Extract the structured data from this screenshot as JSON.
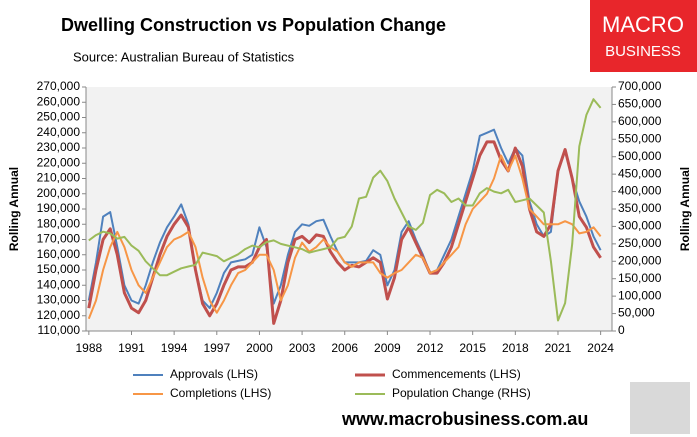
{
  "chart_data": {
    "type": "line",
    "title": "Dwelling Construction vs Population Change",
    "subtitle": "Source: Australian Bureau of Statistics",
    "y_label": "Rolling Annual",
    "y2_label": "Rolling Annual",
    "logo": [
      "MACRO",
      "BUSINESS"
    ],
    "footer": "www.macrobusiness.com.au",
    "x": [
      1988,
      1988.5,
      1989,
      1989.5,
      1990,
      1990.5,
      1991,
      1991.5,
      1992,
      1992.5,
      1993,
      1993.5,
      1994,
      1994.5,
      1995,
      1995.5,
      1996,
      1996.5,
      1997,
      1997.5,
      1998,
      1998.5,
      1999,
      1999.5,
      2000,
      2000.5,
      2001,
      2001.5,
      2002,
      2002.5,
      2003,
      2003.5,
      2004,
      2004.5,
      2005,
      2005.5,
      2006,
      2006.5,
      2007,
      2007.5,
      2008,
      2008.5,
      2009,
      2009.5,
      2010,
      2010.5,
      2011,
      2011.5,
      2012,
      2012.5,
      2013,
      2013.5,
      2014,
      2014.5,
      2015,
      2015.5,
      2016,
      2016.5,
      2017,
      2017.5,
      2018,
      2018.5,
      2019,
      2019.5,
      2020,
      2020.5,
      2021,
      2021.5,
      2022,
      2022.5,
      2023,
      2023.5,
      2024
    ],
    "xlim": [
      1987.8,
      2024.8
    ],
    "xticks": [
      1988,
      1991,
      1994,
      1997,
      2000,
      2003,
      2006,
      2009,
      2012,
      2015,
      2018,
      2021,
      2024
    ],
    "ylim": [
      110000,
      270000
    ],
    "yticks": [
      {
        "value": 110000,
        "label": "110,000"
      },
      {
        "value": 120000,
        "label": "120,000"
      },
      {
        "value": 130000,
        "label": "130,000"
      },
      {
        "value": 140000,
        "label": "140,000"
      },
      {
        "value": 150000,
        "label": "150,000"
      },
      {
        "value": 160000,
        "label": "160,000"
      },
      {
        "value": 170000,
        "label": "170,000"
      },
      {
        "value": 180000,
        "label": "180,000"
      },
      {
        "value": 190000,
        "label": "190,000"
      },
      {
        "value": 200000,
        "label": "200,000"
      },
      {
        "value": 210000,
        "label": "210,000"
      },
      {
        "value": 220000,
        "label": "220,000"
      },
      {
        "value": 230000,
        "label": "230,000"
      },
      {
        "value": 240000,
        "label": "240,000"
      },
      {
        "value": 250000,
        "label": "250,000"
      },
      {
        "value": 260000,
        "label": "260,000"
      },
      {
        "value": 270000,
        "label": "270,000"
      }
    ],
    "y2lim": [
      0,
      700000
    ],
    "y2ticks": [
      0,
      {
        "value": 50000,
        "label": "50,000"
      },
      {
        "value": 100000,
        "label": "100,000"
      },
      {
        "value": 150000,
        "label": "150,000"
      },
      {
        "value": 200000,
        "label": "200,000"
      },
      {
        "value": 250000,
        "label": "250,000"
      },
      {
        "value": 300000,
        "label": "300,000"
      },
      {
        "value": 350000,
        "label": "350,000"
      },
      {
        "value": 400000,
        "label": "400,000"
      },
      {
        "value": 450000,
        "label": "450,000"
      },
      {
        "value": 500000,
        "label": "500,000"
      },
      {
        "value": 550000,
        "label": "550,000"
      },
      {
        "value": 600000,
        "label": "600,000"
      },
      {
        "value": 650000,
        "label": "650,000"
      },
      {
        "value": 700000,
        "label": "700,000"
      }
    ],
    "grid": false,
    "series": [
      {
        "name": "Approvals (LHS)",
        "color": "#4f81bd",
        "width": 2,
        "values": [
          130000,
          155000,
          185000,
          188000,
          165000,
          140000,
          130000,
          128000,
          140000,
          155000,
          168000,
          178000,
          185000,
          193000,
          180000,
          150000,
          130000,
          125000,
          135000,
          148000,
          155000,
          156000,
          157000,
          160000,
          178000,
          165000,
          128000,
          140000,
          160000,
          175000,
          180000,
          179000,
          182000,
          183000,
          172000,
          162000,
          155000,
          155000,
          155000,
          156000,
          163000,
          160000,
          140000,
          150000,
          175000,
          182000,
          170000,
          160000,
          148000,
          150000,
          160000,
          170000,
          185000,
          200000,
          215000,
          238000,
          240000,
          242000,
          230000,
          220000,
          230000,
          225000,
          195000,
          180000,
          172000,
          175000,
          215000,
          228000,
          210000,
          195000,
          185000,
          172000,
          163000
        ]
      },
      {
        "name": "Commencements (LHS)",
        "color": "#c0504d",
        "width": 3,
        "values": [
          125000,
          150000,
          170000,
          177000,
          160000,
          135000,
          125000,
          122000,
          130000,
          145000,
          160000,
          172000,
          180000,
          186000,
          178000,
          150000,
          128000,
          120000,
          128000,
          140000,
          150000,
          152000,
          152000,
          155000,
          165000,
          170000,
          115000,
          130000,
          155000,
          170000,
          172000,
          168000,
          173000,
          172000,
          162000,
          155000,
          150000,
          153000,
          152000,
          155000,
          158000,
          155000,
          131000,
          145000,
          170000,
          178000,
          168000,
          158000,
          148000,
          148000,
          155000,
          165000,
          180000,
          195000,
          210000,
          225000,
          234000,
          234000,
          222000,
          215000,
          230000,
          218000,
          190000,
          175000,
          172000,
          180000,
          215000,
          229000,
          210000,
          185000,
          178000,
          165000,
          158000
        ]
      },
      {
        "name": "Completions (LHS)",
        "color": "#f79646",
        "width": 2,
        "values": [
          118000,
          130000,
          150000,
          165000,
          175000,
          165000,
          150000,
          140000,
          135000,
          145000,
          155000,
          165000,
          170000,
          172000,
          175000,
          165000,
          145000,
          130000,
          122000,
          130000,
          140000,
          148000,
          150000,
          155000,
          160000,
          160000,
          150000,
          130000,
          140000,
          158000,
          168000,
          162000,
          165000,
          170000,
          165000,
          162000,
          155000,
          152000,
          155000,
          155000,
          155000,
          148000,
          145000,
          148000,
          150000,
          155000,
          160000,
          158000,
          148000,
          150000,
          155000,
          160000,
          165000,
          180000,
          190000,
          195000,
          200000,
          210000,
          225000,
          215000,
          225000,
          210000,
          190000,
          185000,
          180000,
          180000,
          180000,
          182000,
          180000,
          174000,
          175000,
          178000,
          172000
        ]
      },
      {
        "name": "Population Change (RHS)",
        "color": "#9bbb59",
        "width": 2,
        "axis": "y2",
        "values": [
          260000,
          275000,
          285000,
          280000,
          265000,
          270000,
          245000,
          230000,
          200000,
          180000,
          160000,
          160000,
          170000,
          180000,
          185000,
          190000,
          225000,
          220000,
          215000,
          200000,
          210000,
          220000,
          235000,
          245000,
          240000,
          255000,
          260000,
          250000,
          245000,
          240000,
          235000,
          225000,
          230000,
          235000,
          240000,
          265000,
          270000,
          300000,
          380000,
          385000,
          440000,
          460000,
          430000,
          380000,
          340000,
          300000,
          290000,
          310000,
          390000,
          405000,
          395000,
          370000,
          380000,
          360000,
          360000,
          395000,
          410000,
          400000,
          395000,
          405000,
          370000,
          375000,
          380000,
          360000,
          340000,
          200000,
          30000,
          80000,
          250000,
          530000,
          620000,
          665000,
          640000
        ]
      }
    ]
  }
}
